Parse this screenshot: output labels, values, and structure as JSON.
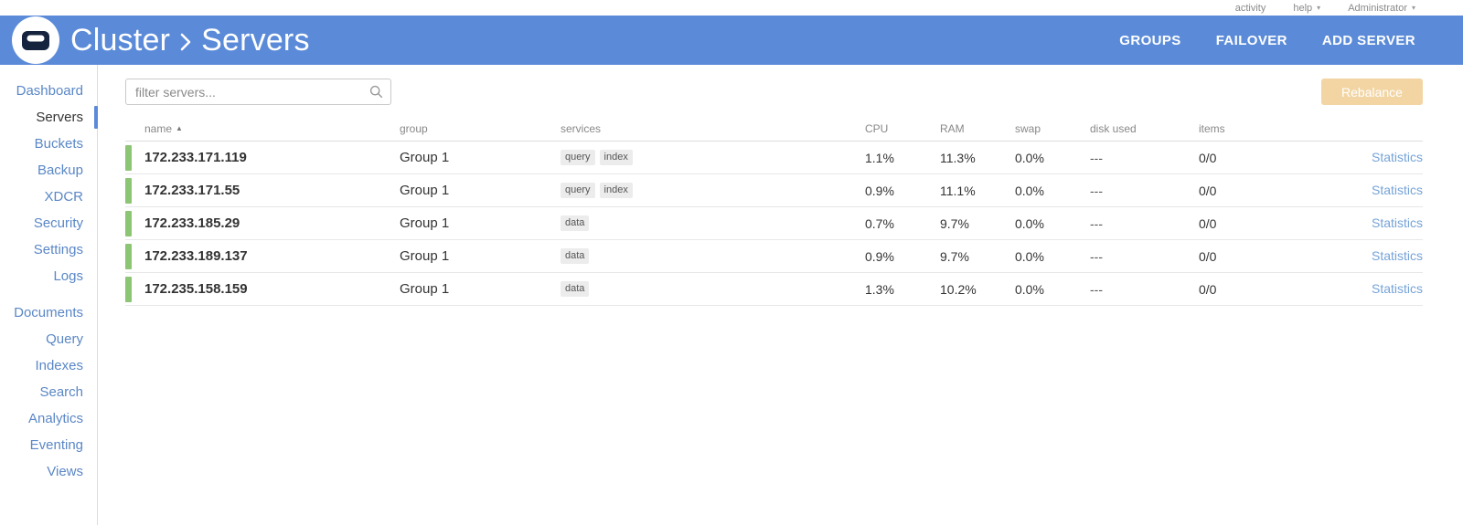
{
  "topbar": {
    "activity_label": "activity",
    "help_label": "help",
    "user_label": "Administrator"
  },
  "header": {
    "cluster_label": "Cluster",
    "section_label": "Servers",
    "actions": [
      {
        "label": "GROUPS"
      },
      {
        "label": "FAILOVER"
      },
      {
        "label": "ADD SERVER"
      }
    ]
  },
  "sidebar": {
    "items": [
      {
        "label": "Dashboard"
      },
      {
        "label": "Servers",
        "active": true
      },
      {
        "label": "Buckets"
      },
      {
        "label": "Backup"
      },
      {
        "label": "XDCR"
      },
      {
        "label": "Security"
      },
      {
        "label": "Settings"
      },
      {
        "label": "Logs"
      },
      {
        "label": "Documents",
        "group_break": true
      },
      {
        "label": "Query"
      },
      {
        "label": "Indexes"
      },
      {
        "label": "Search"
      },
      {
        "label": "Analytics"
      },
      {
        "label": "Eventing"
      },
      {
        "label": "Views"
      }
    ]
  },
  "main": {
    "filter_placeholder": "filter servers...",
    "rebalance_label": "Rebalance",
    "table": {
      "columns": [
        {
          "key": "name",
          "label": "name",
          "sorted": "asc"
        },
        {
          "key": "group",
          "label": "group"
        },
        {
          "key": "services",
          "label": "services"
        },
        {
          "key": "cpu",
          "label": "CPU"
        },
        {
          "key": "ram",
          "label": "RAM"
        },
        {
          "key": "swap",
          "label": "swap"
        },
        {
          "key": "disk",
          "label": "disk used"
        },
        {
          "key": "items",
          "label": "items"
        }
      ],
      "stats_label": "Statistics",
      "rows": [
        {
          "name": "172.233.171.119",
          "group": "Group 1",
          "services": [
            "query",
            "index"
          ],
          "cpu": "1.1%",
          "ram": "11.3%",
          "swap": "0.0%",
          "disk": "---",
          "items": "0/0",
          "health": "healthy"
        },
        {
          "name": "172.233.171.55",
          "group": "Group 1",
          "services": [
            "query",
            "index"
          ],
          "cpu": "0.9%",
          "ram": "11.1%",
          "swap": "0.0%",
          "disk": "---",
          "items": "0/0",
          "health": "healthy"
        },
        {
          "name": "172.233.185.29",
          "group": "Group 1",
          "services": [
            "data"
          ],
          "cpu": "0.7%",
          "ram": "9.7%",
          "swap": "0.0%",
          "disk": "---",
          "items": "0/0",
          "health": "healthy"
        },
        {
          "name": "172.233.189.137",
          "group": "Group 1",
          "services": [
            "data"
          ],
          "cpu": "0.9%",
          "ram": "9.7%",
          "swap": "0.0%",
          "disk": "---",
          "items": "0/0",
          "health": "healthy"
        },
        {
          "name": "172.235.158.159",
          "group": "Group 1",
          "services": [
            "data"
          ],
          "cpu": "1.3%",
          "ram": "10.2%",
          "swap": "0.0%",
          "disk": "---",
          "items": "0/0",
          "health": "healthy"
        }
      ]
    }
  },
  "colors": {
    "header_blue": "#5b8bd8",
    "link_blue": "#5a87c6",
    "healthy_green": "#8cc573",
    "rebalance_disabled": "#f2d5a3"
  }
}
